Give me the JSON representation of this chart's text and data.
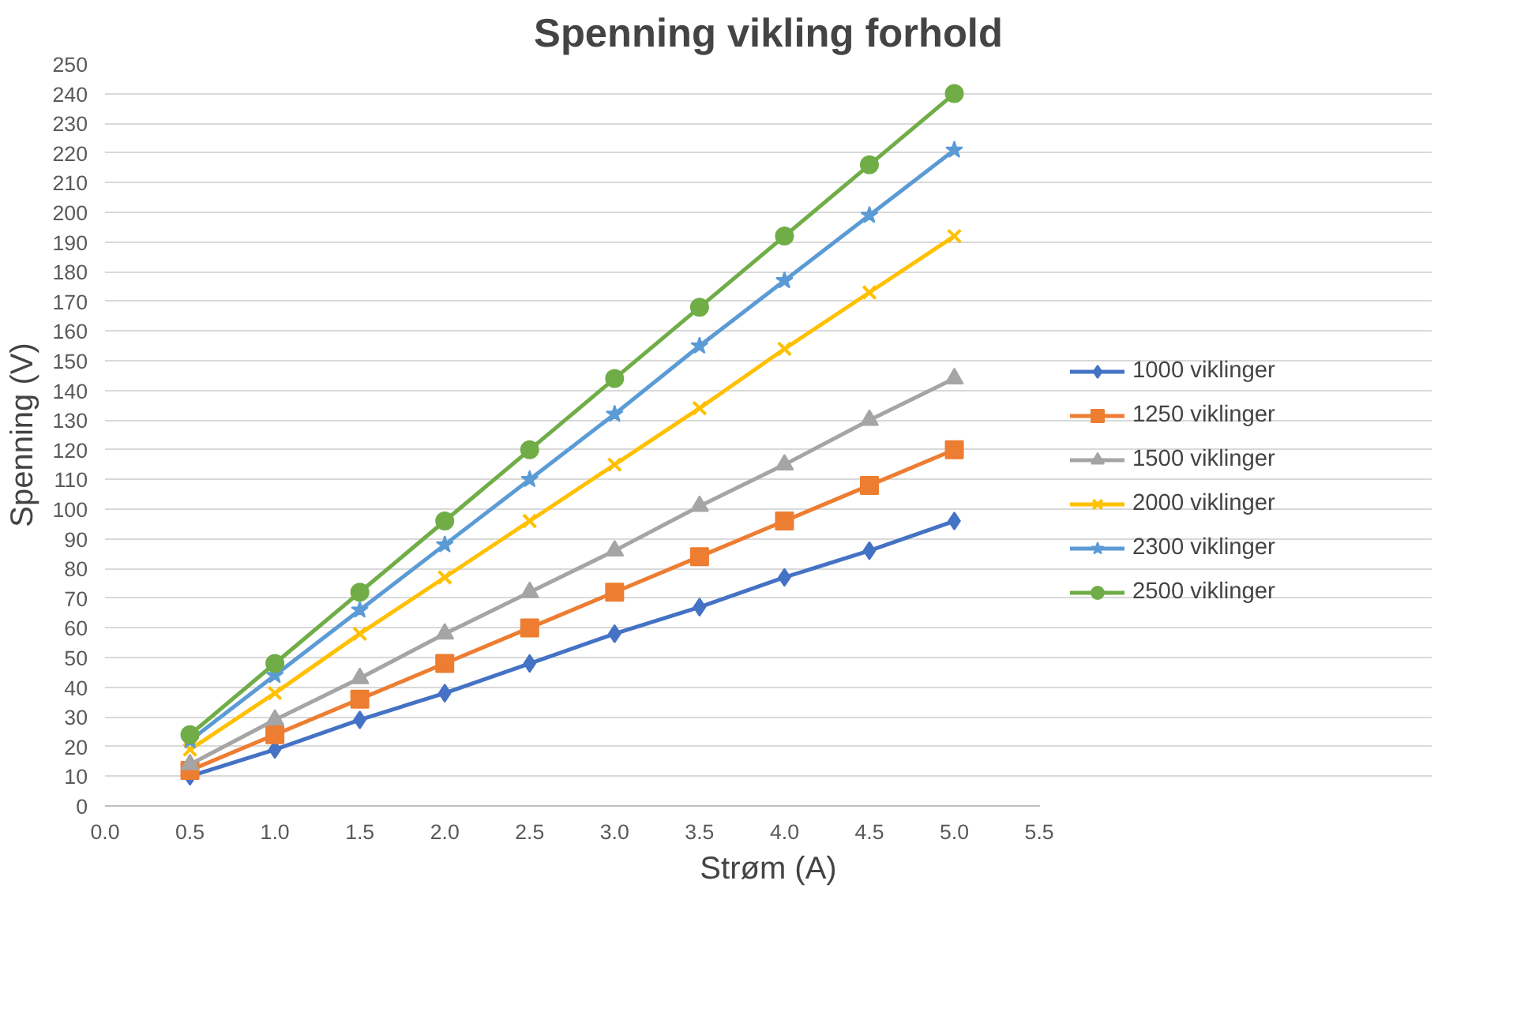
{
  "chart_data": {
    "type": "line",
    "title": "Spenning vikling forhold",
    "xlabel": "Strøm (A)",
    "ylabel": "Spenning (V)",
    "x": [
      0.5,
      1.0,
      1.5,
      2.0,
      2.5,
      3.0,
      3.5,
      4.0,
      4.5,
      5.0
    ],
    "series": [
      {
        "name": "1000 viklinger",
        "color": "#4472c4",
        "marker": "diamond",
        "values": [
          10,
          19,
          29,
          38,
          48,
          58,
          67,
          77,
          86,
          96
        ]
      },
      {
        "name": "1250 viklinger",
        "color": "#ed7d31",
        "marker": "square",
        "values": [
          12,
          24,
          36,
          48,
          60,
          72,
          84,
          96,
          108,
          120
        ]
      },
      {
        "name": "1500 viklinger",
        "color": "#a5a5a5",
        "marker": "triangle",
        "values": [
          14,
          29,
          43,
          58,
          72,
          86,
          101,
          115,
          130,
          144
        ]
      },
      {
        "name": "2000 viklinger",
        "color": "#ffc000",
        "marker": "cross",
        "values": [
          19,
          38,
          58,
          77,
          96,
          115,
          134,
          154,
          173,
          192
        ]
      },
      {
        "name": "2300 viklinger",
        "color": "#5b9bd5",
        "marker": "star",
        "values": [
          22,
          44,
          66,
          88,
          110,
          132,
          155,
          177,
          199,
          221
        ]
      },
      {
        "name": "2500 viklinger",
        "color": "#70ad47",
        "marker": "circle",
        "values": [
          24,
          48,
          72,
          96,
          120,
          144,
          168,
          192,
          216,
          240
        ]
      }
    ],
    "xlim": [
      0,
      5.5
    ],
    "xticks": [
      {
        "value": 0,
        "label": "0.0"
      },
      {
        "value": 0.5,
        "label": "0.5"
      },
      {
        "value": 1,
        "label": "1.0"
      },
      {
        "value": 1.5,
        "label": "1.5"
      },
      {
        "value": 2,
        "label": "2.0"
      },
      {
        "value": 2.5,
        "label": "2.5"
      },
      {
        "value": 3,
        "label": "3.0"
      },
      {
        "value": 3.5,
        "label": "3.5"
      },
      {
        "value": 4,
        "label": "4.0"
      },
      {
        "value": 4.5,
        "label": "4.5"
      },
      {
        "value": 5,
        "label": "5.0"
      },
      {
        "value": 5.5,
        "label": "5.5"
      }
    ],
    "ylim": [
      0,
      250
    ],
    "yticks": [
      0,
      10,
      20,
      30,
      40,
      50,
      60,
      70,
      80,
      90,
      100,
      110,
      120,
      130,
      140,
      150,
      160,
      170,
      180,
      190,
      200,
      210,
      220,
      230,
      240,
      250
    ],
    "grid": "y",
    "legend": "right",
    "line_style": "solid"
  }
}
